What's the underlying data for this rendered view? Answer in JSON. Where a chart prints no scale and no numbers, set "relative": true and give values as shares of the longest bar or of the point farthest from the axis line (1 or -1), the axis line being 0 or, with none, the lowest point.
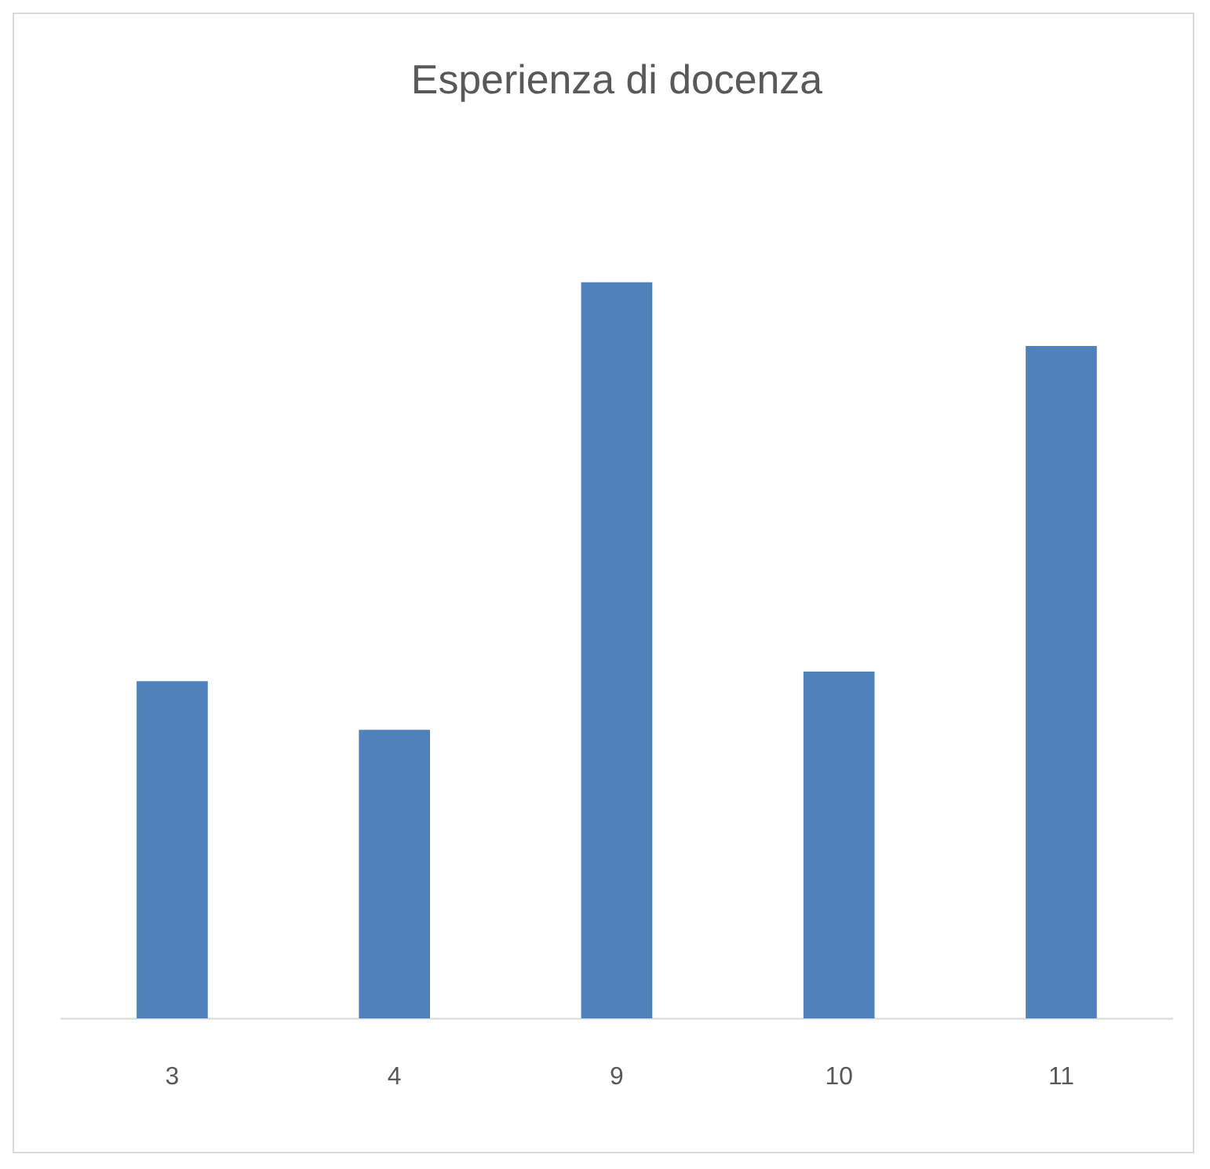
{
  "chart_data": {
    "type": "bar",
    "title": "Esperienza di docenza",
    "categories": [
      "3",
      "4",
      "9",
      "10",
      "11"
    ],
    "values": [
      0.458,
      0.392,
      1,
      0.471,
      0.913
    ],
    "color": "#4f81bd",
    "relative": true,
    "grid": false,
    "legend": false
  }
}
